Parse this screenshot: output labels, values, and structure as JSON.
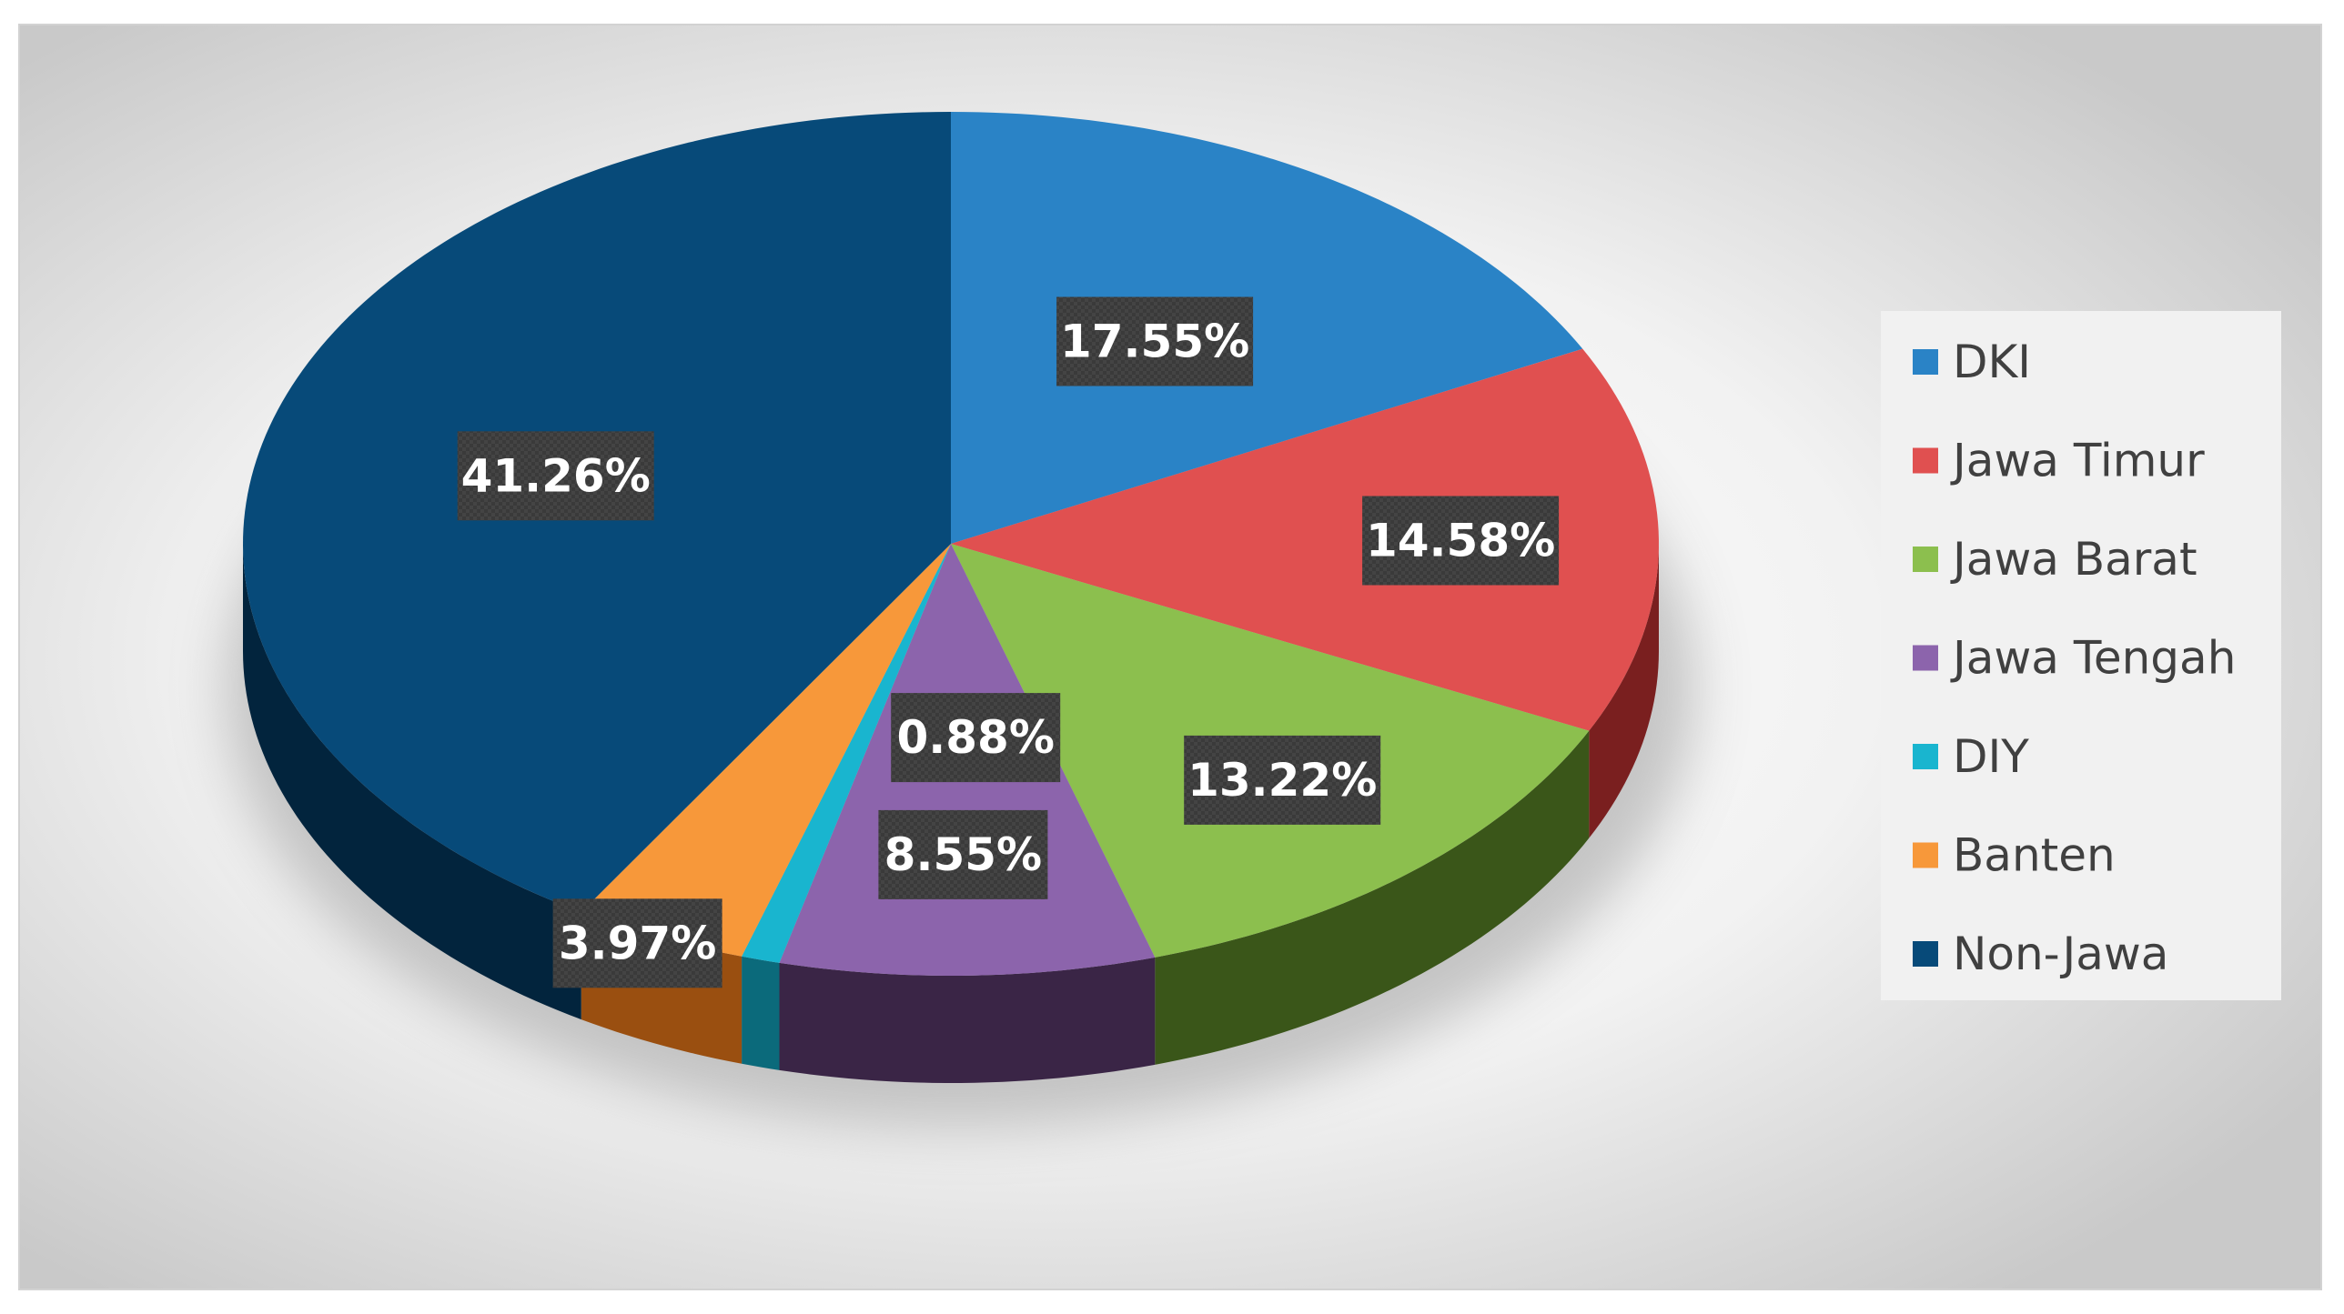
{
  "chart_data": {
    "type": "pie",
    "style": "3d-exploded-none",
    "title": "",
    "legend_position": "right",
    "slices": [
      {
        "label": "DKI",
        "value": 17.55,
        "display": "17.55%",
        "color": "#2A83C6",
        "side_color": "#15456A"
      },
      {
        "label": "Jawa Timur",
        "value": 14.58,
        "display": "14.58%",
        "color": "#E05050",
        "side_color": "#7A1F1F"
      },
      {
        "label": "Jawa Barat",
        "value": 13.22,
        "display": "13.22%",
        "color": "#8CBF4E",
        "side_color": "#3A5619"
      },
      {
        "label": "Jawa Tengah",
        "value": 8.55,
        "display": "8.55%",
        "color": "#8C64AC",
        "side_color": "#3A2546"
      },
      {
        "label": "DIY",
        "value": 0.88,
        "display": "0.88%",
        "color": "#19B5CF",
        "side_color": "#0B6A7B"
      },
      {
        "label": "Banten",
        "value": 3.97,
        "display": "3.97%",
        "color": "#F7983A",
        "side_color": "#9A4F10"
      },
      {
        "label": "Non-Jawa",
        "value": 41.26,
        "display": "41.26%",
        "color": "#074A79",
        "side_color": "#02243D"
      }
    ]
  },
  "colors": {
    "background_center": "#ffffff",
    "background_edge": "#cfcfcf",
    "label_box": "#3A3A3A",
    "legend_box": "#F1F1F1",
    "legend_text": "#404040"
  }
}
